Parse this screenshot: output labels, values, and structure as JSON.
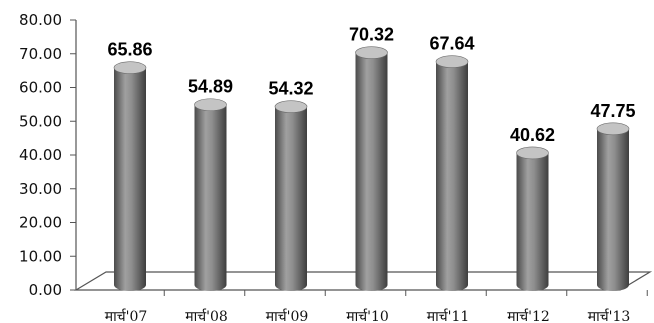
{
  "chart_data": {
    "type": "bar",
    "categories": [
      "मार्च'07",
      "मार्च'08",
      "मार्च'09",
      "मार्च'10",
      "मार्च'11",
      "मार्च'12",
      "मार्च'13"
    ],
    "values": [
      65.86,
      54.89,
      54.32,
      70.32,
      67.64,
      40.62,
      47.75
    ],
    "value_labels": [
      "65.86",
      "54.89",
      "54.32",
      "70.32",
      "67.64",
      "40.62",
      "47.75"
    ],
    "y_ticks": [
      "0.00",
      "10.00",
      "20.00",
      "30.00",
      "40.00",
      "50.00",
      "60.00",
      "70.00",
      "80.00"
    ],
    "ylim": [
      0,
      80
    ],
    "grid": false,
    "legend": "none",
    "style": "3d-cylinder",
    "colors": {
      "bar": "#8a8a8a",
      "bar_dark": "#4a4a4a",
      "bar_light": "#c4c4c4",
      "axis": "#555555",
      "text": "#000000"
    }
  }
}
